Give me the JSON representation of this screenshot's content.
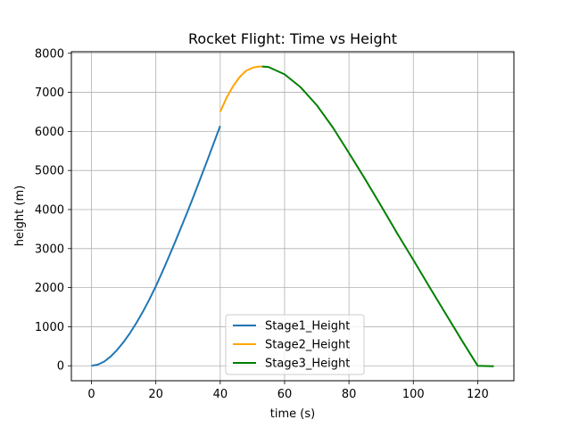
{
  "chart_data": {
    "type": "line",
    "title": "Rocket Flight: Time vs Height",
    "xlabel": "time (s)",
    "ylabel": "height (m)",
    "xlim": [
      -6.25,
      131.25
    ],
    "ylim": [
      -383,
      8040
    ],
    "xticks": [
      "0",
      "20",
      "40",
      "60",
      "80",
      "100",
      "120"
    ],
    "yticks": [
      "0",
      "1000",
      "2000",
      "3000",
      "4000",
      "5000",
      "6000",
      "7000",
      "8000"
    ],
    "grid": true,
    "legend_position": "lower center",
    "series": [
      {
        "name": "Stage1_Height",
        "color": "#1f77b4",
        "x": [
          0,
          2,
          4,
          6,
          8,
          10,
          12,
          14,
          16,
          18,
          20,
          22,
          24,
          26,
          28,
          30,
          32,
          34,
          36,
          38,
          40
        ],
        "y": [
          0,
          30,
          110,
          240,
          410,
          610,
          840,
          1100,
          1390,
          1700,
          2040,
          2400,
          2780,
          3170,
          3570,
          3980,
          4400,
          4830,
          5260,
          5700,
          6140
        ]
      },
      {
        "name": "Stage2_Height",
        "color": "#ffa500",
        "x": [
          40,
          42,
          44,
          46,
          48,
          50,
          52,
          53
        ],
        "y": [
          6500,
          6870,
          7160,
          7390,
          7550,
          7630,
          7660,
          7660
        ]
      },
      {
        "name": "Stage3_Height",
        "color": "#008000",
        "x": [
          53,
          55,
          60,
          65,
          70,
          75,
          80,
          85,
          90,
          95,
          100,
          105,
          110,
          115,
          120,
          125
        ],
        "y": [
          7660,
          7650,
          7460,
          7130,
          6670,
          6100,
          5450,
          4780,
          4090,
          3390,
          2710,
          2020,
          1340,
          660,
          0,
          -10
        ]
      }
    ]
  }
}
